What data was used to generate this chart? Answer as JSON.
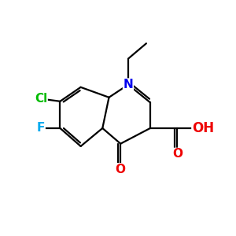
{
  "background_color": "#ffffff",
  "atom_colors": {
    "N": "#0000ee",
    "O": "#ee0000",
    "Cl": "#00bb00",
    "F": "#00aaee",
    "C": "#000000"
  },
  "bond_color": "#000000",
  "bond_width": 1.6,
  "figsize": [
    3.0,
    3.0
  ],
  "dpi": 100
}
